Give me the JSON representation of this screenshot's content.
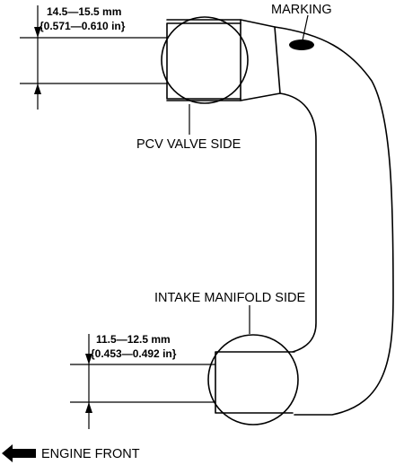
{
  "labels": {
    "marking": "MARKING",
    "pcv_side": "PCV VALVE SIDE",
    "intake_side": "INTAKE MANIFOLD SIDE",
    "engine_front": "ENGINE FRONT"
  },
  "dimensions": {
    "pcv": {
      "mm": "14.5—15.5 mm",
      "inch": "{0.571—0.610 in}"
    },
    "intake": {
      "mm": "11.5—12.5 mm",
      "inch": "{0.453—0.492 in}"
    }
  }
}
